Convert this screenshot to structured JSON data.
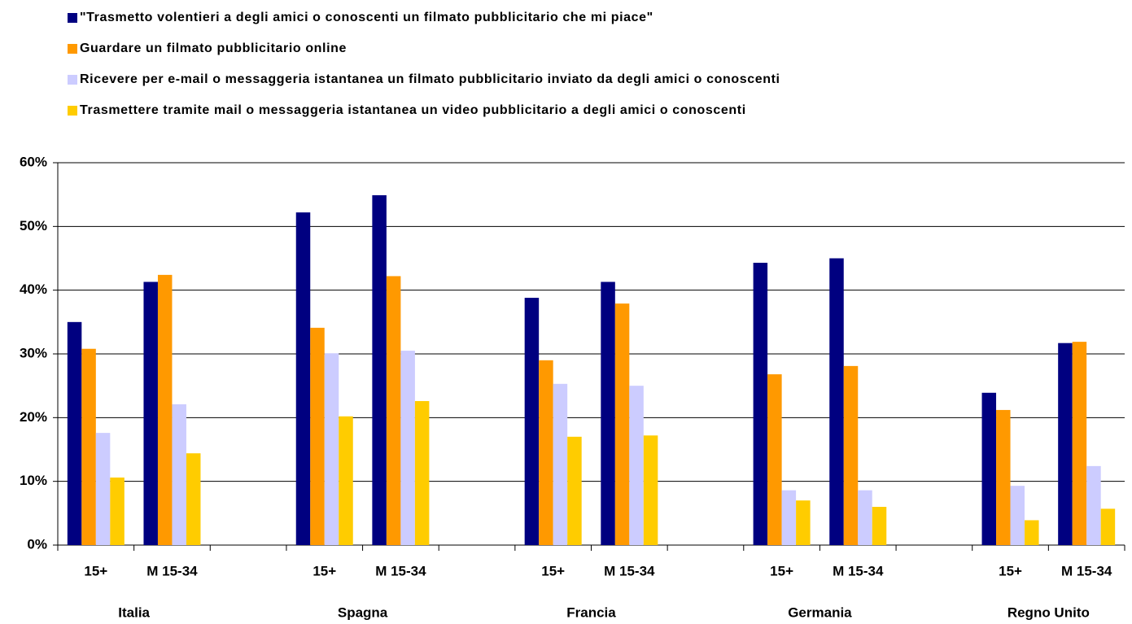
{
  "chart_data": {
    "type": "bar",
    "categories": [
      "15+",
      "M 15-34",
      null,
      "15+",
      "M 15-34",
      null,
      "15+",
      "M 15-34",
      null,
      "15+",
      "M 15-34",
      null,
      "15+",
      "M 15-34"
    ],
    "groups": [
      "Italia",
      "Spagna",
      "Francia",
      "Germania",
      "Regno Unito"
    ],
    "series": [
      {
        "name": "\"Trasmetto volentieri a degli amici o conoscenti un filmato pubblicitario che mi piace\"",
        "color": "#000080",
        "values": [
          35,
          41.3,
          null,
          52.2,
          54.9,
          null,
          38.8,
          41.3,
          null,
          44.3,
          45,
          null,
          23.9,
          31.7
        ]
      },
      {
        "name": "Guardare un filmato pubblicitario online",
        "color": "#ff9900",
        "values": [
          30.8,
          42.4,
          null,
          34.1,
          42.2,
          null,
          29,
          37.9,
          null,
          26.8,
          28.1,
          null,
          21.2,
          31.9
        ]
      },
      {
        "name": "Ricevere per e-mail o messaggeria istantanea un filmato pubblicitario inviato da degli amici o conoscenti",
        "color": "#ccccff",
        "values": [
          17.6,
          22.1,
          null,
          30.1,
          30.5,
          null,
          25.3,
          25,
          null,
          8.6,
          8.6,
          null,
          9.3,
          12.4
        ]
      },
      {
        "name": "Trasmettere tramite mail o messaggeria istantanea un video pubblicitario a degli amici o conoscenti",
        "color": "#ffcc00",
        "values": [
          10.6,
          14.4,
          null,
          20.2,
          22.6,
          null,
          17,
          17.2,
          null,
          7,
          6,
          null,
          3.9,
          5.7
        ]
      }
    ],
    "ylim": [
      0,
      60
    ],
    "yticks": [
      {
        "value": 0,
        "label": "0%"
      },
      {
        "value": 10,
        "label": "10%"
      },
      {
        "value": 20,
        "label": "20%"
      },
      {
        "value": 30,
        "label": "30%"
      },
      {
        "value": 40,
        "label": "40%"
      },
      {
        "value": 50,
        "label": "50%"
      },
      {
        "value": 60,
        "label": "60%"
      }
    ],
    "grid": true
  }
}
